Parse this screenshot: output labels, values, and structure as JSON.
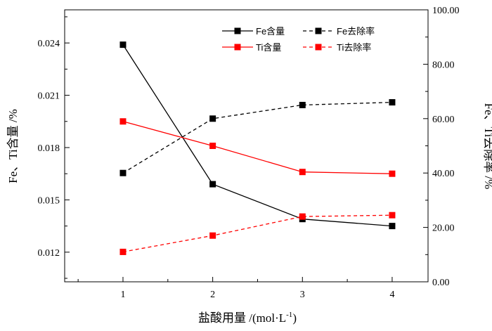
{
  "chart_data": {
    "type": "line",
    "x": [
      1,
      2,
      3,
      4
    ],
    "xlabel": "盐酸用量 /(mol·L",
    "xlabel_sup": "-1",
    "xlabel_close": ")",
    "ylabel_left": "Fe、Ti含量 /%",
    "ylabel_right": "Fe、Ti去除率 /%",
    "xlim": [
      0.35,
      4.4
    ],
    "ylim_left": [
      0.0103,
      0.0259
    ],
    "ylim_right": [
      0,
      100
    ],
    "xticks": [
      "1",
      "2",
      "3",
      "4"
    ],
    "yticks_left": [
      "0.012",
      "0.015",
      "0.018",
      "0.021",
      "0.024"
    ],
    "yticks_right": [
      "0.00",
      "20.00",
      "40.00",
      "60.00",
      "80.00",
      "100.00"
    ],
    "legend_position": "top-right",
    "series": [
      {
        "name": "Fe含量",
        "axis": "left",
        "color": "#000000",
        "dashed": false,
        "values": [
          0.0239,
          0.0159,
          0.0139,
          0.0135
        ]
      },
      {
        "name": "Fe去除率",
        "axis": "right",
        "color": "#000000",
        "dashed": true,
        "values": [
          40.0,
          60.0,
          65.0,
          66.0
        ]
      },
      {
        "name": "Ti含量",
        "axis": "left",
        "color": "#ff0000",
        "dashed": false,
        "values": [
          0.0195,
          0.0181,
          0.0166,
          0.0165
        ]
      },
      {
        "name": "Ti去除率",
        "axis": "right",
        "color": "#ff0000",
        "dashed": true,
        "values": [
          11.0,
          17.0,
          24.0,
          24.5
        ]
      }
    ]
  }
}
